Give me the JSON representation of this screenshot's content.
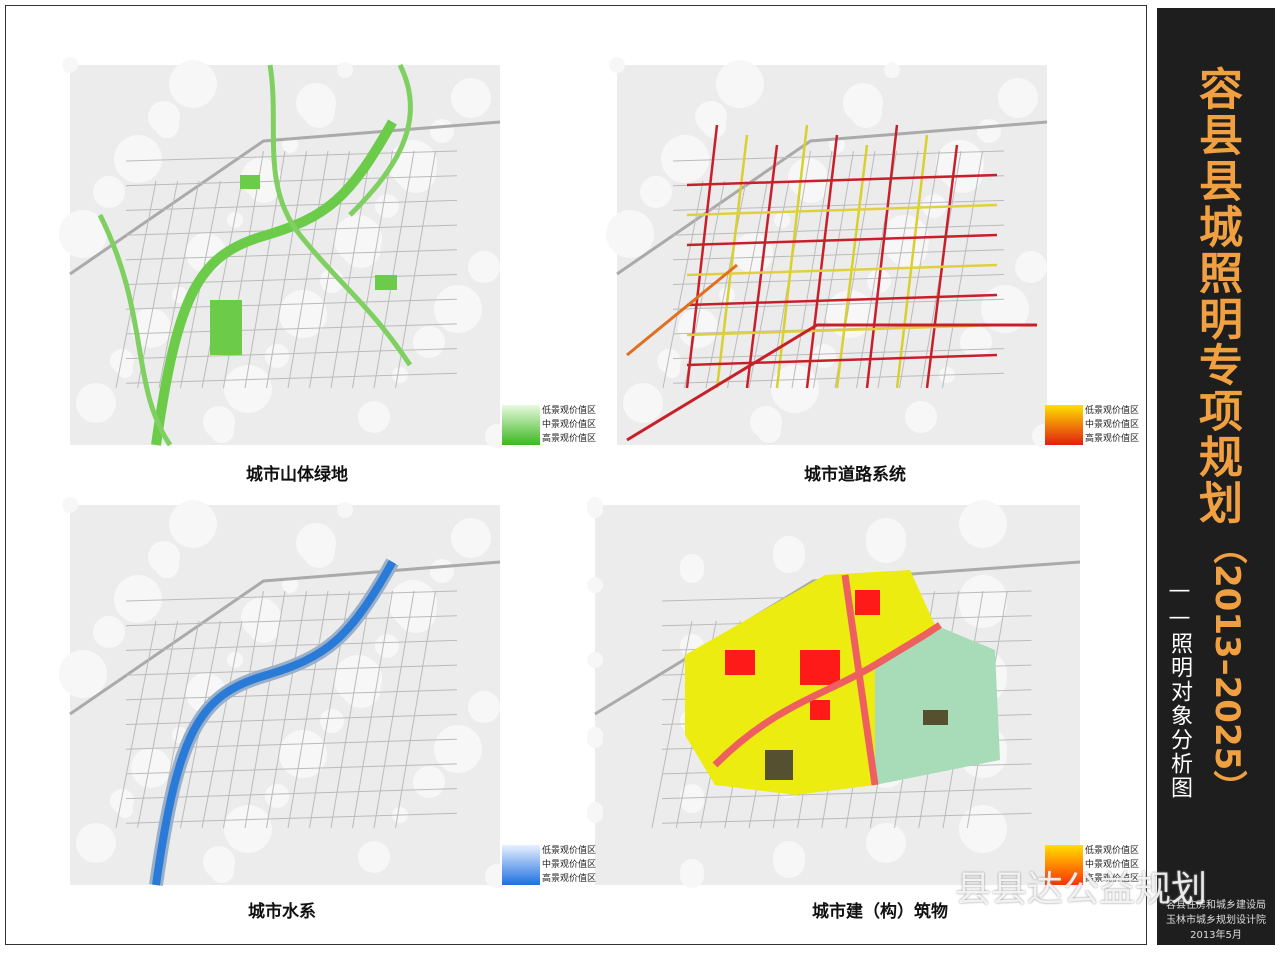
{
  "header": {
    "title": "容县县城照明专项规划",
    "years": "（2013–2025）",
    "subtitle": "——照明对象分析图"
  },
  "panels": [
    {
      "caption": "城市山体绿地",
      "legend": [
        "低景观价值区",
        "中景观价值区",
        "高景观价值区"
      ]
    },
    {
      "caption": "城市道路系统",
      "legend": [
        "低景观价值区",
        "中景观价值区",
        "高景观价值区"
      ]
    },
    {
      "caption": "城市水系",
      "legend": [
        "低景观价值区",
        "中景观价值区",
        "高景观价值区"
      ]
    },
    {
      "caption": "城市建（构）筑物",
      "legend": [
        "低景观价值区",
        "中景观价值区",
        "高景观价值区"
      ]
    }
  ],
  "footer": {
    "org1": "容县住房和城乡建设局",
    "org2": "玉林市城乡规划设计院",
    "date": "2013年5月"
  },
  "watermark": "县县达公益规划"
}
